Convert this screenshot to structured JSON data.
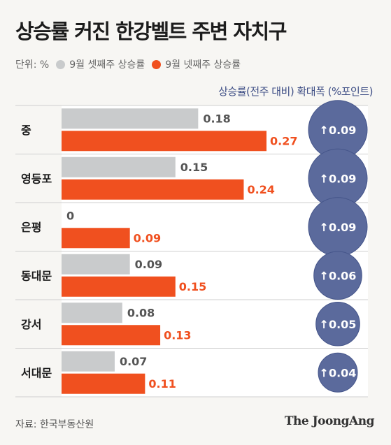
{
  "title": "상승률 커진 한강벨트 주변 자치구",
  "legend": {
    "unit": "단위: %",
    "series1": "9월 셋째주 상승률",
    "series2": "9월 넷째주 상승률"
  },
  "circle_header": "상승률(전주 대비) 확대폭 (%포인트)",
  "source": "자료: 한국부동산원",
  "brand": "The JoongAng",
  "colors": {
    "series1": "#c9cbcc",
    "series2": "#f0501f",
    "circle": "#5b6a9c",
    "circle_stroke": "#45558a"
  },
  "chart_data": {
    "type": "bar",
    "orientation": "horizontal",
    "categories": [
      "중",
      "영등포",
      "은평",
      "동대문",
      "강서",
      "서대문"
    ],
    "series": [
      {
        "name": "9월 셋째주 상승률",
        "values": [
          0.18,
          0.15,
          0,
          0.09,
          0.08,
          0.07
        ],
        "labels": [
          "0.18",
          "0.15",
          "0",
          "0.09",
          "0.08",
          "0.07"
        ]
      },
      {
        "name": "9월 넷째주 상승률",
        "values": [
          0.27,
          0.24,
          0.09,
          0.15,
          0.13,
          0.11
        ],
        "labels": [
          "0.27",
          "0.24",
          "0.09",
          "0.15",
          "0.13",
          "0.11"
        ]
      }
    ],
    "increase": {
      "name": "상승률(전주 대비) 확대폭 (%포인트)",
      "values": [
        0.09,
        0.09,
        0.09,
        0.06,
        0.05,
        0.04
      ],
      "labels": [
        "↑0.09",
        "↑0.09",
        "↑0.09",
        "↑0.06",
        "↑0.05",
        "↑0.04"
      ]
    },
    "xlim": [
      0,
      0.27
    ]
  }
}
